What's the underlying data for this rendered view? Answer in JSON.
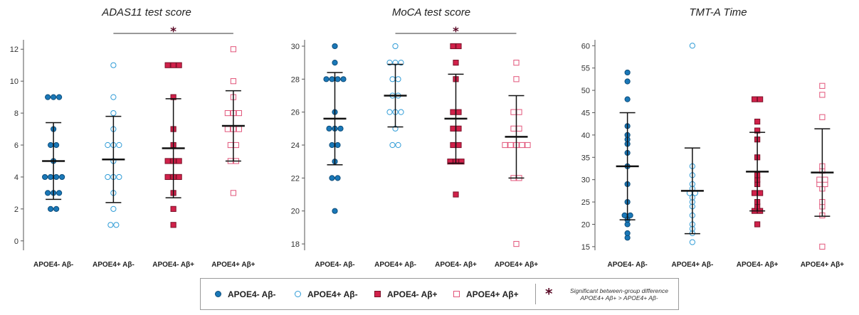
{
  "chart_data": [
    {
      "type": "scatter",
      "title": "ADAS11 test score",
      "xlabel": "",
      "ylabel": "",
      "ylim": [
        -0.5,
        12.5
      ],
      "yticks": [
        0,
        2,
        4,
        6,
        8,
        10,
        12
      ],
      "categories": [
        "APOE4- Aβ-",
        "APOE4+ Aβ-",
        "APOE4- Aβ+",
        "APOE4+ Aβ+"
      ],
      "series": [
        {
          "name": "APOE4- Aβ-",
          "values": [
            2,
            2,
            3,
            3,
            3,
            4,
            4,
            4,
            4,
            5,
            6,
            6,
            7,
            9,
            9,
            9
          ],
          "mean": 5.0,
          "sd": 2.4
        },
        {
          "name": "APOE4+ Aβ-",
          "values": [
            1,
            1,
            2,
            3,
            4,
            4,
            4,
            5,
            6,
            6,
            6,
            7,
            8,
            9,
            11
          ],
          "mean": 5.1,
          "sd": 2.7
        },
        {
          "name": "APOE4- Aβ+",
          "values": [
            1,
            2,
            3,
            4,
            4,
            4,
            5,
            5,
            5,
            6,
            7,
            9,
            11,
            11,
            11
          ],
          "mean": 5.8,
          "sd": 3.1
        },
        {
          "name": "APOE4+ Aβ+",
          "values": [
            3,
            5,
            5,
            6,
            6,
            7,
            7,
            7,
            8,
            8,
            8,
            9,
            10,
            12
          ],
          "mean": 7.2,
          "sd": 2.2
        }
      ],
      "significance": {
        "from": 1,
        "to": 3,
        "symbol": "*"
      },
      "grid": false
    },
    {
      "type": "scatter",
      "title": "MoCA test score",
      "xlabel": "",
      "ylabel": "",
      "ylim": [
        17.7,
        30.3
      ],
      "yticks": [
        18,
        20,
        22,
        24,
        26,
        28,
        30
      ],
      "categories": [
        "APOE4- Aβ-",
        "APOE4+ Aβ-",
        "APOE4- Aβ+",
        "APOE4+ Aβ+"
      ],
      "series": [
        {
          "name": "APOE4- Aβ-",
          "values": [
            20,
            22,
            22,
            23,
            24,
            24,
            25,
            25,
            25,
            26,
            28,
            28,
            28,
            28,
            29,
            30
          ],
          "mean": 25.6,
          "sd": 2.8
        },
        {
          "name": "APOE4+ Aβ-",
          "values": [
            24,
            24,
            25,
            26,
            26,
            26,
            27,
            27,
            28,
            28,
            29,
            29,
            29,
            30
          ],
          "mean": 27.0,
          "sd": 1.9
        },
        {
          "name": "APOE4- Aβ+",
          "values": [
            21,
            23,
            23,
            23,
            24,
            24,
            25,
            25,
            26,
            26,
            28,
            29,
            30,
            30
          ],
          "mean": 25.6,
          "sd": 2.7
        },
        {
          "name": "APOE4+ Aβ+",
          "values": [
            18,
            22,
            22,
            24,
            24,
            24,
            24,
            24,
            25,
            25,
            26,
            26,
            28,
            29
          ],
          "mean": 24.5,
          "sd": 2.5
        }
      ],
      "significance": {
        "from": 1,
        "to": 3,
        "symbol": "*"
      },
      "grid": false
    },
    {
      "type": "scatter",
      "title": "TMT-A Time",
      "xlabel": "",
      "ylabel": "",
      "ylim": [
        14.5,
        61
      ],
      "yticks": [
        15,
        20,
        25,
        30,
        35,
        40,
        45,
        50,
        55,
        60
      ],
      "categories": [
        "APOE4- Aβ-",
        "APOE4+ Aβ-",
        "APOE4- Aβ+",
        "APOE4+ Aβ+"
      ],
      "series": [
        {
          "name": "APOE4- Aβ-",
          "values": [
            17,
            18,
            20,
            21,
            22,
            22,
            25,
            29,
            33,
            36,
            38,
            39,
            40,
            42,
            48,
            52,
            54
          ],
          "mean": 33.0,
          "sd": 12.0
        },
        {
          "name": "APOE4+ Aβ-",
          "values": [
            16,
            18,
            19,
            20,
            22,
            24,
            25,
            26,
            27,
            27,
            28,
            29,
            31,
            33,
            60
          ],
          "mean": 27.5,
          "sd": 9.6
        },
        {
          "name": "APOE4- Aβ+",
          "values": [
            20,
            23,
            23,
            24,
            25,
            27,
            27,
            29,
            30,
            31,
            35,
            39,
            41,
            43,
            48,
            48
          ],
          "mean": 31.8,
          "sd": 8.8
        },
        {
          "name": "APOE4+ Aβ+",
          "values": [
            15,
            22,
            24,
            25,
            28,
            29,
            29,
            30,
            30,
            32,
            33,
            44,
            49,
            51
          ],
          "mean": 31.6,
          "sd": 9.8
        }
      ],
      "grid": false
    }
  ],
  "legend": {
    "items": [
      {
        "label": "APOE4- Aβ-",
        "marker": "circle-filled",
        "color": "#1a78b8",
        "edge": "#0d4d7a"
      },
      {
        "label": "APOE4+ Aβ-",
        "marker": "circle-open",
        "color": "#2e9bd6",
        "edge": "#2e9bd6"
      },
      {
        "label": "APOE4- Aβ+",
        "marker": "square-filled",
        "color": "#d1214a",
        "edge": "#7a1028"
      },
      {
        "label": "APOE4+ Aβ+",
        "marker": "square-open",
        "color": "#e2557a",
        "edge": "#e2557a"
      }
    ],
    "star_symbol": "*",
    "note_line1": "Significant between-group difference",
    "note_line2": "APOE4+ Aβ+ > APOE4+ Aβ-"
  }
}
